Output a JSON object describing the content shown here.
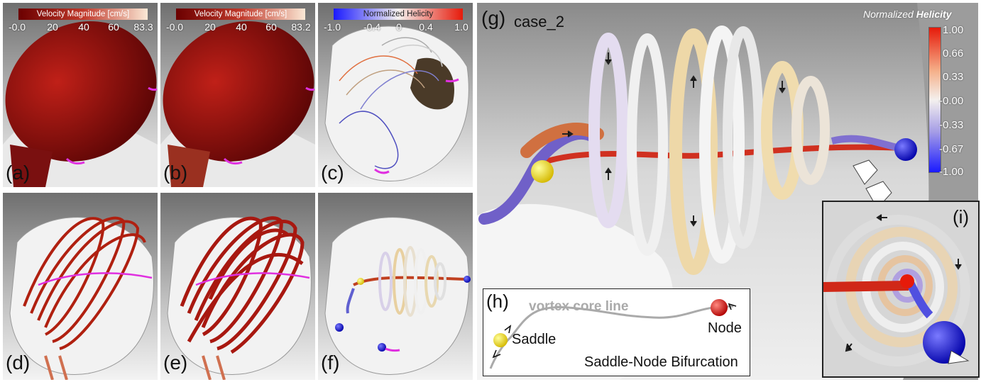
{
  "panels": {
    "a": {
      "label": "(a)",
      "colorbar_title": "Velocity Magnitude [cm/s]",
      "ticks": [
        "-0.0",
        "20",
        "40",
        "60",
        "83.3"
      ]
    },
    "b": {
      "label": "(b)",
      "colorbar_title": "Velocity Magnitude [cm/s]",
      "ticks": [
        "-0.0",
        "20",
        "40",
        "60",
        "83.2"
      ]
    },
    "c": {
      "label": "(c)",
      "colorbar_title": "Normalized Helicity",
      "ticks": [
        "-1.0",
        "-0.4",
        "0",
        "0.4",
        "1.0"
      ]
    },
    "d": {
      "label": "(d)"
    },
    "e": {
      "label": "(e)"
    },
    "f": {
      "label": "(f)"
    },
    "g": {
      "label": "(g)",
      "case_name": "case_2",
      "legend": {
        "title_normal": "Normalized ",
        "title_bold": "Helicity",
        "ticks": [
          "1.00",
          "0.66",
          "0.33",
          "-0.00",
          "-0.33",
          "-0.67",
          "-1.00"
        ]
      }
    },
    "h": {
      "label": "(h)",
      "core_line_label": "vortex core line",
      "saddle_label": "Saddle",
      "node_label": "Node",
      "caption": "Saddle-Node Bifurcation"
    },
    "i": {
      "label": "(i)"
    }
  },
  "colors": {
    "velocity_low": "#6b0000",
    "velocity_high": "#fbe9d6",
    "helicity_neg": "#1a1aff",
    "helicity_zero": "#f4f0ee",
    "helicity_pos": "#e61a0a",
    "saddle": "#f7e000",
    "node": "#e00000",
    "critical_point_blue": "#1010e6",
    "cut_curve": "#e030e0"
  }
}
